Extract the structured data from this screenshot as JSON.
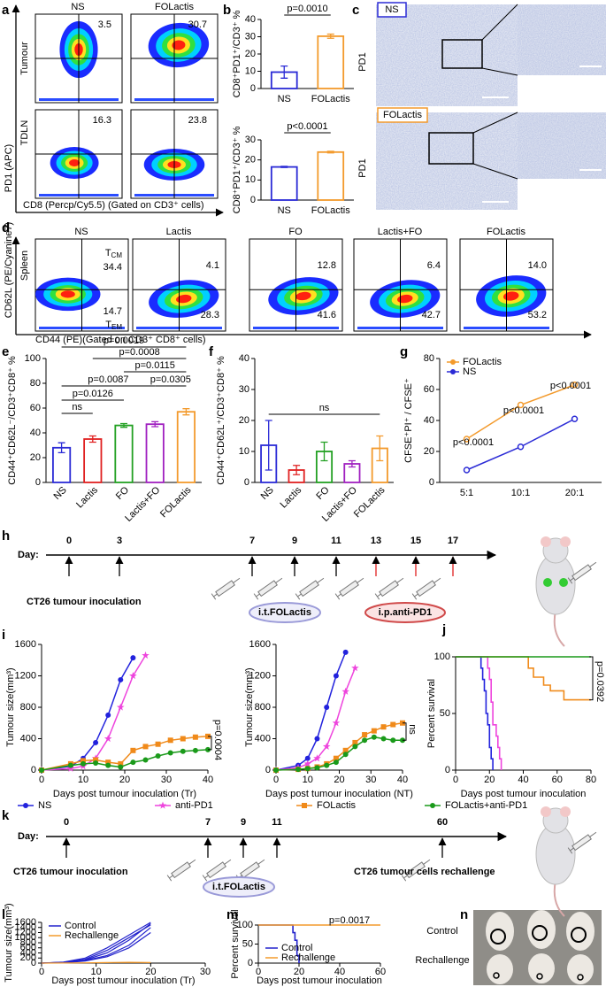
{
  "panel_labels": [
    "a",
    "b",
    "c",
    "d",
    "e",
    "f",
    "g",
    "h",
    "i",
    "j",
    "k",
    "l",
    "m",
    "n"
  ],
  "a": {
    "columns": [
      "NS",
      "FOLactis"
    ],
    "rows": [
      "Tumour",
      "TDLN"
    ],
    "quadrant_values": [
      "3.5",
      "30.7",
      "16.3",
      "23.8"
    ],
    "y_label": "PD1 (APC)",
    "x_label": "CD8 (Percp/Cy5.5) (Gated on CD3⁺ cells)"
  },
  "c": {
    "labels": [
      "NS",
      "FOLactis"
    ],
    "stain": [
      "PD1",
      "PD1"
    ]
  },
  "d": {
    "columns": [
      "NS",
      "Lactis",
      "FO",
      "Lactis+FO",
      "FOLactis"
    ],
    "upper_values": [
      "34.4",
      "4.1",
      "12.8",
      "6.4",
      "14.0"
    ],
    "lower_values": [
      "14.7",
      "28.3",
      "41.6",
      "42.7",
      "53.2"
    ],
    "tcm": {
      "main": "T",
      "sub": "CM"
    },
    "tem": {
      "main": "T",
      "sub": "EM"
    },
    "row": "Spleen",
    "y_label": "CD62L (PE/Cyanine7)",
    "x_label": "CD44 (PE)(Gated on CD3⁺ CD8⁺ cells)"
  },
  "h": {
    "day_label": "Day:",
    "days": [
      0,
      3,
      7,
      9,
      11,
      13,
      15,
      17
    ],
    "caption": "CT26 tumour inoculation",
    "treatments": [
      "i.t.FOLactis",
      "i.p.anti-PD1"
    ]
  },
  "k": {
    "day_label": "Day:",
    "days": [
      0,
      7,
      9,
      11,
      60
    ],
    "captions": [
      "CT26 tumour inoculation",
      "CT26 tumour cells rechallenge"
    ],
    "treatment": "i.t.FOLactis"
  },
  "n": {
    "labels": [
      "Control",
      "Rechallenge"
    ]
  },
  "chart_data": [
    {
      "type": "bar",
      "y_label": "CD8⁺PD1⁺/CD3⁺ %",
      "categories": [
        "NS",
        "FOLactis"
      ],
      "values": [
        9.5,
        30.3
      ],
      "errors": [
        3.5,
        1.2
      ],
      "colors": [
        "#2b2bd6",
        "#f39a2c"
      ],
      "ylim": [
        0,
        40
      ],
      "yticks": [
        0,
        10,
        20,
        30,
        40
      ],
      "annotations": [
        "p=0.0010"
      ]
    },
    {
      "type": "bar",
      "y_label": "CD8⁺PD1⁺/CD3⁺ %",
      "categories": [
        "NS",
        "FOLactis"
      ],
      "values": [
        16.5,
        23.9
      ],
      "errors": [
        0.3,
        0.4
      ],
      "colors": [
        "#2b2bd6",
        "#f39a2c"
      ],
      "ylim": [
        0,
        30
      ],
      "yticks": [
        0,
        10,
        20,
        30
      ],
      "annotations": [
        "p<0.0001"
      ]
    },
    {
      "type": "bar",
      "y_label": "CD44⁺CD62L⁻/CD3⁺CD8⁺ %",
      "categories": [
        "NS",
        "Lactis",
        "FO",
        "Lactis+FO",
        "FOLactis"
      ],
      "values": [
        28,
        35,
        46,
        47,
        57
      ],
      "errors": [
        4,
        2.5,
        1.5,
        2,
        2.5
      ],
      "colors": [
        "#2b2bd6",
        "#e02020",
        "#22a022",
        "#a020c0",
        "#f39a2c"
      ],
      "ylim": [
        0,
        100
      ],
      "yticks": [
        0,
        20,
        40,
        60,
        80,
        100
      ],
      "annotations": [
        "p=0.0019",
        "p=0.0008",
        "p=0.0115",
        "p=0.0087",
        "p=0.0305",
        "p=0.0126",
        "ns"
      ]
    },
    {
      "type": "bar",
      "y_label": "CD44⁺CD62L⁺/CD3⁺CD8⁺ %",
      "categories": [
        "NS",
        "Lactis",
        "FO",
        "Lactis+FO",
        "FOLactis"
      ],
      "values": [
        12,
        4,
        10,
        6,
        11
      ],
      "errors": [
        8,
        1.5,
        3,
        1,
        4
      ],
      "colors": [
        "#2b2bd6",
        "#e02020",
        "#22a022",
        "#a020c0",
        "#f39a2c"
      ],
      "ylim": [
        0,
        40
      ],
      "yticks": [
        0,
        10,
        20,
        30,
        40
      ],
      "annotations": [
        "ns"
      ]
    },
    {
      "type": "line",
      "y_label": "CFSE⁺PI⁺ / CFSE⁺",
      "categories": [
        "5:1",
        "10:1",
        "20:1"
      ],
      "series": [
        {
          "name": "FOLactis",
          "color": "#f39a2c",
          "values": [
            28,
            50,
            63
          ]
        },
        {
          "name": "NS",
          "color": "#2b2bd6",
          "values": [
            8,
            23,
            41
          ]
        }
      ],
      "ylim": [
        0,
        80
      ],
      "yticks": [
        0,
        20,
        40,
        60,
        80
      ],
      "legend": "upper left",
      "annotations": [
        "p<0.0001",
        "p<0.0001",
        "p<0.0001"
      ]
    },
    {
      "type": "line",
      "y_label": "Tumour size(mm³)",
      "x_label": "Days post tumour inoculation (Tr)",
      "x": [
        0,
        7,
        10,
        13,
        16,
        19,
        22,
        25,
        28,
        31,
        34,
        37,
        40
      ],
      "xlim": [
        0,
        40
      ],
      "xticks": [
        0,
        10,
        20,
        30,
        40
      ],
      "ylim": [
        0,
        1600
      ],
      "yticks": [
        0,
        400,
        800,
        1200,
        1600
      ],
      "series": [
        {
          "name": "NS",
          "color": "#2222dd",
          "marker": "circle",
          "values": [
            0,
            50,
            150,
            350,
            700,
            1150,
            1430,
            null,
            null,
            null,
            null,
            null,
            null
          ]
        },
        {
          "name": "anti-PD1",
          "color": "#ee44dd",
          "marker": "star",
          "values": [
            0,
            20,
            50,
            150,
            400,
            800,
            1200,
            1460,
            null,
            null,
            null,
            null,
            null
          ]
        },
        {
          "name": "FOLactis",
          "color": "#f08a1a",
          "marker": "square",
          "values": [
            0,
            80,
            120,
            130,
            100,
            80,
            250,
            300,
            330,
            380,
            400,
            420,
            430
          ]
        },
        {
          "name": "FOLactis+anti-PD1",
          "color": "#1a9a1a",
          "marker": "circle",
          "values": [
            0,
            60,
            80,
            90,
            60,
            40,
            100,
            130,
            180,
            220,
            240,
            250,
            260
          ]
        }
      ],
      "annotations": [
        "p=0.0004"
      ]
    },
    {
      "type": "line",
      "y_label": "Tumour size(mm³)",
      "x_label": "Days post tumour inoculation (NT)",
      "x": [
        0,
        7,
        10,
        13,
        16,
        19,
        22,
        25,
        28,
        31,
        34,
        37,
        40
      ],
      "xlim": [
        0,
        40
      ],
      "xticks": [
        0,
        10,
        20,
        30,
        40
      ],
      "ylim": [
        0,
        1600
      ],
      "yticks": [
        0,
        400,
        800,
        1200,
        1600
      ],
      "series": [
        {
          "color": "#2222dd",
          "marker": "circle",
          "values": [
            0,
            60,
            150,
            400,
            800,
            1200,
            1500,
            null,
            null,
            null,
            null,
            null,
            null
          ]
        },
        {
          "color": "#ee44dd",
          "marker": "star",
          "values": [
            0,
            30,
            80,
            150,
            300,
            600,
            1000,
            1300,
            null,
            null,
            null,
            null,
            null
          ]
        },
        {
          "color": "#f08a1a",
          "marker": "square",
          "values": [
            0,
            10,
            20,
            40,
            80,
            150,
            250,
            350,
            450,
            500,
            550,
            580,
            600
          ]
        },
        {
          "color": "#1a9a1a",
          "marker": "circle",
          "values": [
            0,
            10,
            20,
            30,
            60,
            100,
            200,
            300,
            380,
            420,
            400,
            380,
            380
          ]
        }
      ],
      "annotations": [
        "ns"
      ]
    },
    {
      "type": "step",
      "y_label": "Percent survival",
      "x_label": "Days post tumour inoculation",
      "xlim": [
        0,
        80
      ],
      "xticks": [
        0,
        20,
        40,
        60,
        80
      ],
      "ylim": [
        0,
        100
      ],
      "yticks": [
        0,
        50,
        100
      ],
      "series": [
        {
          "color": "#2222dd",
          "x": [
            0,
            15,
            16,
            17,
            18,
            19,
            20,
            21,
            22
          ],
          "values": [
            100,
            90,
            80,
            70,
            50,
            40,
            20,
            10,
            0
          ]
        },
        {
          "color": "#ee44dd",
          "x": [
            0,
            19,
            20,
            21,
            22,
            24,
            25,
            26,
            27
          ],
          "values": [
            100,
            90,
            80,
            60,
            40,
            30,
            20,
            10,
            0
          ]
        },
        {
          "color": "#f08a1a",
          "x": [
            0,
            43,
            46,
            52,
            56,
            64,
            80
          ],
          "values": [
            100,
            90,
            82,
            75,
            70,
            62,
            62
          ]
        },
        {
          "color": "#1a9a1a",
          "x": [
            0,
            80
          ],
          "values": [
            100,
            100
          ]
        }
      ],
      "annotations": [
        "p=0.0392"
      ]
    },
    {
      "type": "multiline",
      "y_label": "Tumour size(mm³)",
      "x_label": "Days post tumour inoculation (Tr)",
      "x": [
        0,
        4,
        8,
        12,
        16,
        20
      ],
      "xlim": [
        0,
        30
      ],
      "xticks": [
        0,
        10,
        20,
        30
      ],
      "ylim": [
        0,
        1600
      ],
      "yticks": [
        0,
        200,
        400,
        600,
        800,
        1000,
        1200,
        1400,
        1600
      ],
      "legend": "upper left",
      "series": [
        {
          "name": "Control",
          "color": "#2222cc",
          "lines": [
            [
              0,
              30,
              120,
              400,
              900,
              1550
            ],
            [
              0,
              20,
              100,
              300,
              700,
              1400
            ],
            [
              0,
              40,
              200,
              600,
              1100,
              1600
            ],
            [
              0,
              10,
              80,
              250,
              600,
              1200
            ],
            [
              0,
              30,
              150,
              500,
              1000,
              1500
            ]
          ]
        },
        {
          "name": "Rechallenge",
          "color": "#f39a2c",
          "lines": [
            [
              0,
              5,
              10,
              20,
              30,
              20
            ]
          ]
        }
      ]
    },
    {
      "type": "step",
      "y_label": "Percent survival",
      "x_label": "Days post tumour inoculation",
      "xlim": [
        0,
        60
      ],
      "xticks": [
        0,
        20,
        40,
        60
      ],
      "ylim": [
        0,
        100
      ],
      "yticks": [
        0,
        50,
        100
      ],
      "legend": "lower left",
      "series": [
        {
          "name": "Control",
          "color": "#2222cc",
          "x": [
            0,
            17,
            18,
            19,
            20
          ],
          "values": [
            100,
            80,
            60,
            20,
            0
          ]
        },
        {
          "name": "Rechallenge",
          "color": "#f39a2c",
          "x": [
            0,
            60
          ],
          "values": [
            100,
            100
          ]
        }
      ],
      "annotations": [
        "p=0.0017"
      ]
    }
  ]
}
